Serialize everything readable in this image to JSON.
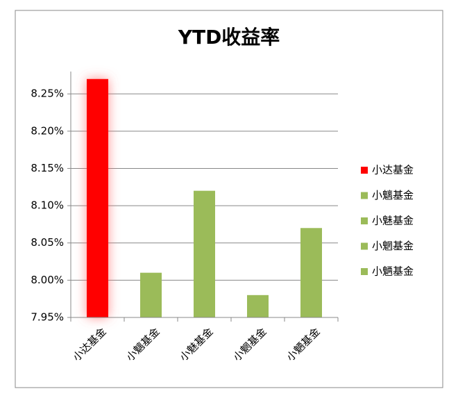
{
  "chart_data": {
    "type": "bar",
    "title": "YTD收益率",
    "categories": [
      "小达基金",
      "小魑基金",
      "小魅基金",
      "小魍基金",
      "小魉基金"
    ],
    "values": [
      8.27,
      8.01,
      8.12,
      7.98,
      8.07
    ],
    "colors": [
      "#ff0000",
      "#9bbb59",
      "#9bbb59",
      "#9bbb59",
      "#9bbb59"
    ],
    "ylim": [
      7.95,
      8.28
    ],
    "yticks": [
      {
        "value": 7.95,
        "label": "7.95%"
      },
      {
        "value": 8.0,
        "label": "8.00%"
      },
      {
        "value": 8.05,
        "label": "8.05%"
      },
      {
        "value": 8.1,
        "label": "8.10%"
      },
      {
        "value": 8.15,
        "label": "8.15%"
      },
      {
        "value": 8.2,
        "label": "8.20%"
      },
      {
        "value": 8.25,
        "label": "8.25%"
      }
    ],
    "grid": true,
    "legend": "right"
  }
}
